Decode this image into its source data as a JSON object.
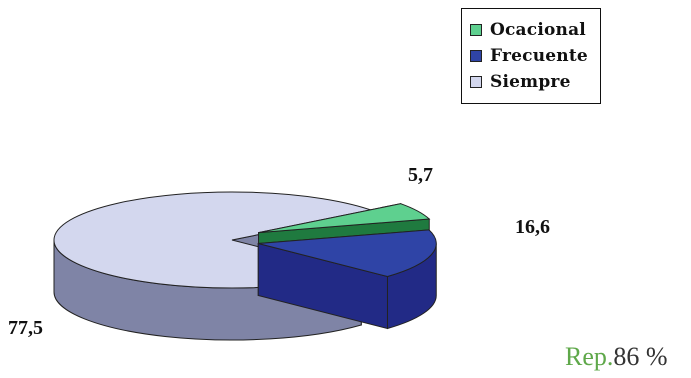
{
  "chart_data": {
    "type": "pie",
    "categories": [
      "Ocacional",
      "Frecuente",
      "Siempre"
    ],
    "values": [
      5.7,
      16.6,
      77.5
    ],
    "value_labels": [
      "5,7",
      "16,6",
      "77,5"
    ],
    "colors": {
      "Ocacional": "#5ed08f",
      "Frecuente": "#2f44a6",
      "Siempre": "#d3d7ee"
    },
    "side_colors": {
      "Ocacional": "#1f7a3f",
      "Frecuente": "#222a86",
      "Siempre": "#7f84a6"
    },
    "legend_position": "top-right",
    "style": "3d-exploded"
  },
  "legend": {
    "items": [
      {
        "label": "Ocacional",
        "color": "#5ed08f"
      },
      {
        "label": "Frecuente",
        "color": "#2f44a6"
      },
      {
        "label": "Siempre",
        "color": "#d3d7ee"
      }
    ]
  },
  "footer": {
    "rep_word": "Rep.",
    "rep_value": "86 %",
    "rep_color": "#5fa84a"
  }
}
